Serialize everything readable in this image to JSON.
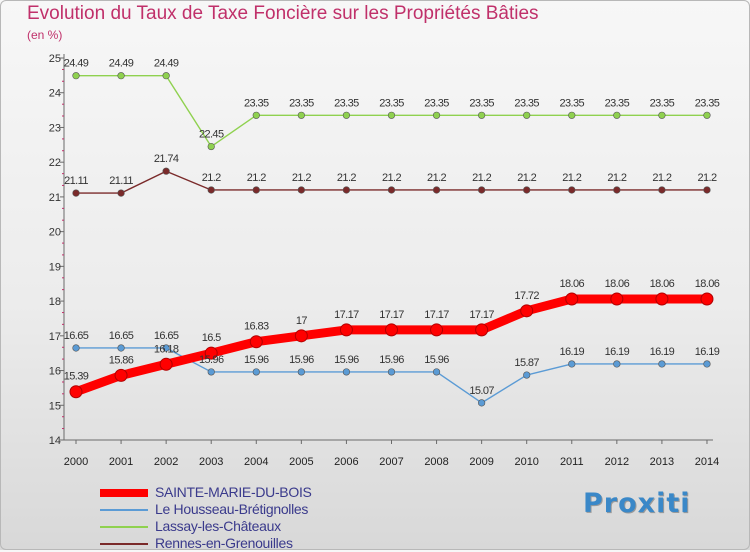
{
  "title": "Evolution du Taux de Taxe Foncière sur les Propriétés Bâties",
  "unit": "(en %)",
  "logo_text": "Proxiti",
  "chart_data": {
    "type": "line",
    "title": "Evolution du Taux de Taxe Foncière sur les Propriétés Bâties",
    "ylabel": "(en %)",
    "xlabel": "",
    "ylim": [
      14,
      25
    ],
    "yticks": [
      14,
      15,
      16,
      17,
      18,
      19,
      20,
      21,
      22,
      23,
      24,
      25
    ],
    "grid": false,
    "legend_position": "bottom-left",
    "x": [
      "2000",
      "2001",
      "2002",
      "2003",
      "2004",
      "2005",
      "2006",
      "2007",
      "2008",
      "2009",
      "2010",
      "2011",
      "2012",
      "2013",
      "2014"
    ],
    "series": [
      {
        "name": "SAINTE-MARIE-DU-BOIS",
        "color": "#ff0000",
        "emphasis": true,
        "values": [
          15.39,
          15.86,
          16.18,
          16.5,
          16.83,
          17,
          17.17,
          17.17,
          17.17,
          17.17,
          17.72,
          18.06,
          18.06,
          18.06,
          18.06
        ],
        "labels": [
          "15.39",
          "15.86",
          "16.18",
          "16.5",
          "16.83",
          "17",
          "17.17",
          "17.17",
          "17.17",
          "17.17",
          "17.72",
          "18.06",
          "18.06",
          "18.06",
          "18.06"
        ]
      },
      {
        "name": "Le Housseau-Brétignolles",
        "color": "#5b9bd5",
        "values": [
          16.65,
          16.65,
          16.65,
          15.96,
          15.96,
          15.96,
          15.96,
          15.96,
          15.96,
          15.07,
          15.87,
          16.19,
          16.19,
          16.19,
          16.19
        ],
        "labels": [
          "16.65",
          "16.65",
          "16.65",
          "15.96",
          "15.96",
          "15.96",
          "15.96",
          "15.96",
          "15.96",
          "15.07",
          "15.87",
          "16.19",
          "16.19",
          "16.19",
          "16.19"
        ]
      },
      {
        "name": "Lassay-les-Châteaux",
        "color": "#8fd14f",
        "values": [
          24.49,
          24.49,
          24.49,
          22.45,
          23.35,
          23.35,
          23.35,
          23.35,
          23.35,
          23.35,
          23.35,
          23.35,
          23.35,
          23.35,
          23.35
        ],
        "labels": [
          "24.49",
          "24.49",
          "24.49",
          "22.45",
          "23.35",
          "23.35",
          "23.35",
          "23.35",
          "23.35",
          "23.35",
          "23.35",
          "23.35",
          "23.35",
          "23.35",
          "23.35"
        ]
      },
      {
        "name": "Rennes-en-Grenouilles",
        "color": "#7a2a2a",
        "values": [
          21.11,
          21.11,
          21.74,
          21.2,
          21.2,
          21.2,
          21.2,
          21.2,
          21.2,
          21.2,
          21.2,
          21.2,
          21.2,
          21.2,
          21.2
        ],
        "labels": [
          "21.11",
          "21.11",
          "21.74",
          "21.2",
          "21.2",
          "21.2",
          "21.2",
          "21.2",
          "21.2",
          "21.2",
          "21.2",
          "21.2",
          "21.2",
          "21.2",
          "21.2"
        ]
      }
    ]
  }
}
